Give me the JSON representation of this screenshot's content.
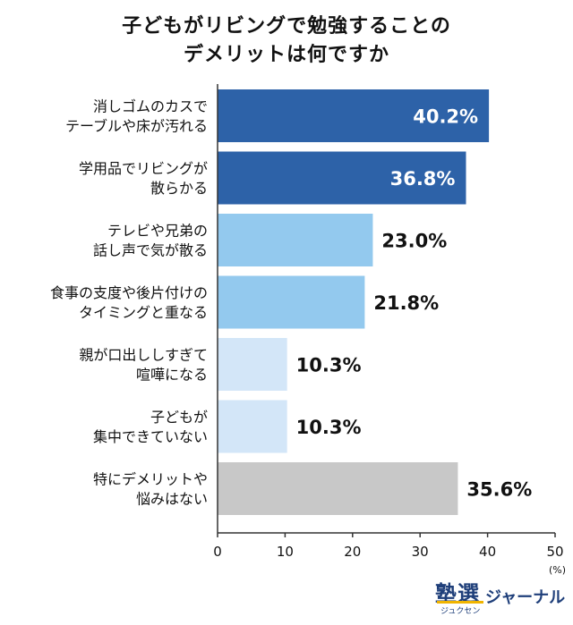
{
  "chart_data": {
    "type": "bar",
    "orientation": "horizontal",
    "title_lines": [
      "子どもがリビングで勉強することの",
      "デメリットは何ですか"
    ],
    "categories": [
      [
        "消しゴムのカスで",
        "テーブルや床が汚れる"
      ],
      [
        "学用品でリビングが",
        "散らかる"
      ],
      [
        "テレビや兄弟の",
        "話し声で気が散る"
      ],
      [
        "食事の支度や後片付けの",
        "タイミングと重なる"
      ],
      [
        "親が口出ししすぎて",
        "喧嘩になる"
      ],
      [
        "子どもが",
        "集中できていない"
      ],
      [
        "特にデメリットや",
        "悩みはない"
      ]
    ],
    "values": [
      40.2,
      36.8,
      23.0,
      21.8,
      10.3,
      10.3,
      35.6
    ],
    "value_labels": [
      "40.2%",
      "36.8%",
      "23.0%",
      "21.8%",
      "10.3%",
      "10.3%",
      "35.6%"
    ],
    "bar_colors": [
      "#2d62a8",
      "#2d62a8",
      "#93c9ee",
      "#93c9ee",
      "#d3e6f8",
      "#d3e6f8",
      "#c8c8c8"
    ],
    "label_inside": [
      true,
      true,
      false,
      false,
      false,
      false,
      false
    ],
    "xlim": [
      0,
      50
    ],
    "xticks": [
      "0",
      "10",
      "20",
      "30",
      "40",
      "50"
    ],
    "unit_label": "(%)",
    "grid": false
  },
  "logo": {
    "main": "塾選",
    "kana": "ジャーナル",
    "sub": "ジュクセン"
  }
}
